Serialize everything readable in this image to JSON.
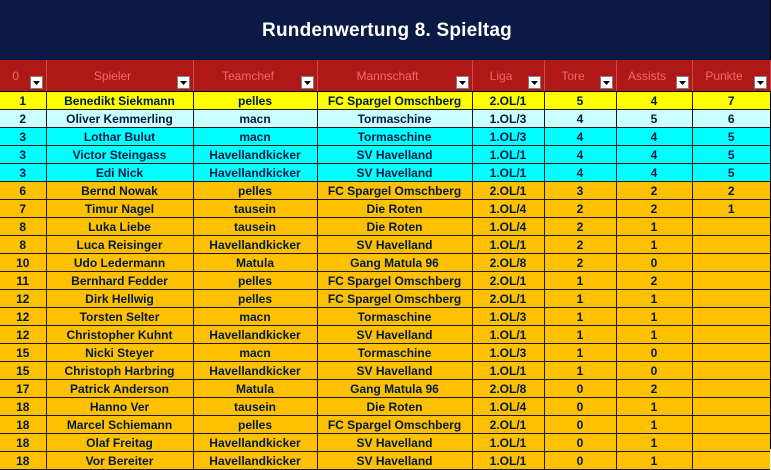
{
  "title": "Rundenwertung 8. Spieltag",
  "colors": {
    "title_bg": "#0b1a45",
    "header_bg": "#b01818",
    "header_text": "#f06a6a",
    "row_yellow": "#ffff00",
    "row_pale": "#ccffff",
    "row_cyan": "#00ffff",
    "row_orange": "#ffc000"
  },
  "columns": [
    {
      "key": "rank",
      "label": "0"
    },
    {
      "key": "player",
      "label": "Spieler"
    },
    {
      "key": "teamchef",
      "label": "Teamchef"
    },
    {
      "key": "team",
      "label": "Mannschaft"
    },
    {
      "key": "league",
      "label": "Liga"
    },
    {
      "key": "goals",
      "label": "Tore"
    },
    {
      "key": "assists",
      "label": "Assists"
    },
    {
      "key": "points",
      "label": "Punkte"
    }
  ],
  "filter_icon": "dropdown-arrow-icon",
  "rows": [
    {
      "style": "yellow",
      "cells": [
        "1",
        "Benedikt Siekmann",
        "pelles",
        "FC Spargel Omschberg",
        "2.OL/1",
        "5",
        "4",
        "7"
      ]
    },
    {
      "style": "pale",
      "cells": [
        "2",
        "Oliver Kemmerling",
        "macn",
        "Tormaschine",
        "1.OL/3",
        "4",
        "5",
        "6"
      ]
    },
    {
      "style": "cyan",
      "cells": [
        "3",
        "Lothar Bulut",
        "macn",
        "Tormaschine",
        "1.OL/3",
        "4",
        "4",
        "5"
      ]
    },
    {
      "style": "cyan",
      "cells": [
        "3",
        "Victor Steingass",
        "Havellandkicker",
        "SV Havelland",
        "1.OL/1",
        "4",
        "4",
        "5"
      ]
    },
    {
      "style": "cyan",
      "cells": [
        "3",
        "Edi Nick",
        "Havellandkicker",
        "SV Havelland",
        "1.OL/1",
        "4",
        "4",
        "5"
      ]
    },
    {
      "style": "orange",
      "cells": [
        "6",
        "Bernd Nowak",
        "pelles",
        "FC Spargel Omschberg",
        "2.OL/1",
        "3",
        "2",
        "2"
      ]
    },
    {
      "style": "orange",
      "cells": [
        "7",
        "Timur Nagel",
        "tausein",
        "Die Roten",
        "1.OL/4",
        "2",
        "2",
        "1"
      ]
    },
    {
      "style": "orange",
      "cells": [
        "8",
        "Luka Liebe",
        "tausein",
        "Die Roten",
        "1.OL/4",
        "2",
        "1",
        ""
      ]
    },
    {
      "style": "orange",
      "cells": [
        "8",
        "Luca Reisinger",
        "Havellandkicker",
        "SV Havelland",
        "1.OL/1",
        "2",
        "1",
        ""
      ]
    },
    {
      "style": "orange",
      "cells": [
        "10",
        "Udo Ledermann",
        "Matula",
        "Gang Matula 96",
        "2.OL/8",
        "2",
        "0",
        ""
      ]
    },
    {
      "style": "orange",
      "cells": [
        "11",
        "Bernhard Fedder",
        "pelles",
        "FC Spargel Omschberg",
        "2.OL/1",
        "1",
        "2",
        ""
      ]
    },
    {
      "style": "orange",
      "cells": [
        "12",
        "Dirk Hellwig",
        "pelles",
        "FC Spargel Omschberg",
        "2.OL/1",
        "1",
        "1",
        ""
      ]
    },
    {
      "style": "orange",
      "cells": [
        "12",
        "Torsten Selter",
        "macn",
        "Tormaschine",
        "1.OL/3",
        "1",
        "1",
        ""
      ]
    },
    {
      "style": "orange",
      "cells": [
        "12",
        "Christopher Kuhnt",
        "Havellandkicker",
        "SV Havelland",
        "1.OL/1",
        "1",
        "1",
        ""
      ]
    },
    {
      "style": "orange",
      "cells": [
        "15",
        "Nicki Steyer",
        "macn",
        "Tormaschine",
        "1.OL/3",
        "1",
        "0",
        ""
      ]
    },
    {
      "style": "orange",
      "cells": [
        "15",
        "Christoph Harbring",
        "Havellandkicker",
        "SV Havelland",
        "1.OL/1",
        "1",
        "0",
        ""
      ]
    },
    {
      "style": "orange",
      "cells": [
        "17",
        "Patrick Anderson",
        "Matula",
        "Gang Matula 96",
        "2.OL/8",
        "0",
        "2",
        ""
      ]
    },
    {
      "style": "orange",
      "cells": [
        "18",
        "Hanno Ver",
        "tausein",
        "Die Roten",
        "1.OL/4",
        "0",
        "1",
        ""
      ]
    },
    {
      "style": "orange",
      "cells": [
        "18",
        "Marcel Schiemann",
        "pelles",
        "FC Spargel Omschberg",
        "2.OL/1",
        "0",
        "1",
        ""
      ]
    },
    {
      "style": "orange",
      "cells": [
        "18",
        "Olaf Freitag",
        "Havellandkicker",
        "SV Havelland",
        "1.OL/1",
        "0",
        "1",
        ""
      ]
    },
    {
      "style": "orange",
      "cells": [
        "18",
        "Vor Bereiter",
        "Havellandkicker",
        "SV Havelland",
        "1.OL/1",
        "0",
        "1",
        ""
      ]
    }
  ]
}
